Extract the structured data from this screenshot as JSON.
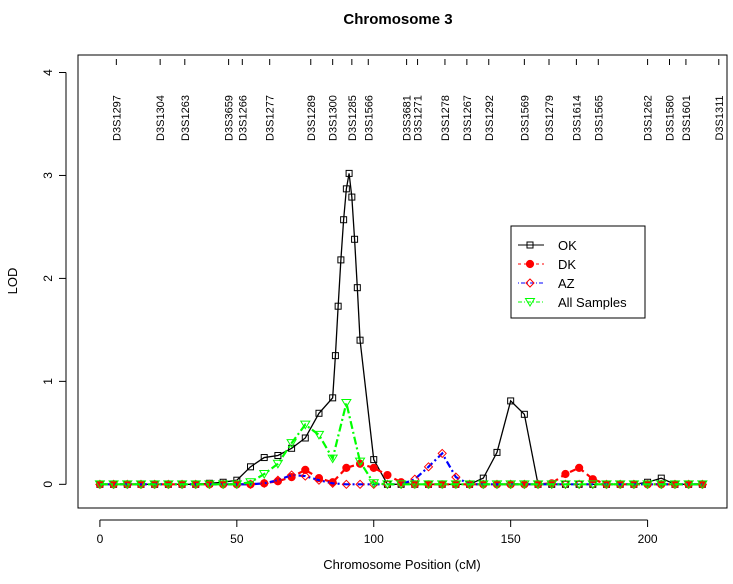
{
  "chart_data": {
    "type": "line",
    "title": "Chromosome 3",
    "xlabel": "Chromosome Position (cM)",
    "ylabel": "LOD",
    "xlim": [
      -8,
      229
    ],
    "ylim": [
      -0.23,
      4.17
    ],
    "xticks": [
      0,
      50,
      100,
      150,
      200
    ],
    "yticks": [
      0,
      1,
      2,
      3,
      4
    ],
    "grid": false,
    "legend_position": "right",
    "markers": [
      {
        "name": "D3S1297",
        "pos": 6
      },
      {
        "name": "D3S1304",
        "pos": 22
      },
      {
        "name": "D3S1263",
        "pos": 31
      },
      {
        "name": "D3S3659",
        "pos": 47
      },
      {
        "name": "D3S1266",
        "pos": 52
      },
      {
        "name": "D3S1277",
        "pos": 62
      },
      {
        "name": "D3S1289",
        "pos": 77
      },
      {
        "name": "D3S1300",
        "pos": 85
      },
      {
        "name": "D3S1285",
        "pos": 92
      },
      {
        "name": "D3S1566",
        "pos": 98
      },
      {
        "name": "D3S3681",
        "pos": 112
      },
      {
        "name": "D3S1271",
        "pos": 116
      },
      {
        "name": "D3S1278",
        "pos": 126
      },
      {
        "name": "D3S1267",
        "pos": 134
      },
      {
        "name": "D3S1292",
        "pos": 142
      },
      {
        "name": "D3S1569",
        "pos": 155
      },
      {
        "name": "D3S1279",
        "pos": 164
      },
      {
        "name": "D3S1614",
        "pos": 174
      },
      {
        "name": "D3S1565",
        "pos": 182
      },
      {
        "name": "D3S1262",
        "pos": 200
      },
      {
        "name": "D3S1580",
        "pos": 208
      },
      {
        "name": "D3S1601",
        "pos": 214
      },
      {
        "name": "D3S1311",
        "pos": 226
      }
    ],
    "series": [
      {
        "name": "OK",
        "color": "#000000",
        "marker": "square",
        "dash": "",
        "x": [
          0,
          5,
          10,
          15,
          20,
          25,
          30,
          35,
          40,
          45,
          50,
          55,
          60,
          65,
          70,
          75,
          80,
          85,
          86,
          87,
          88,
          89,
          90,
          91,
          92,
          93,
          94,
          95,
          100,
          105,
          110,
          115,
          120,
          125,
          130,
          135,
          140,
          145,
          150,
          155,
          160,
          165,
          170,
          175,
          180,
          185,
          190,
          195,
          200,
          205,
          210,
          215,
          220
        ],
        "y": [
          0,
          0,
          0,
          0,
          0,
          0,
          0,
          0,
          0.01,
          0.02,
          0.04,
          0.17,
          0.26,
          0.28,
          0.35,
          0.45,
          0.69,
          0.84,
          1.25,
          1.73,
          2.18,
          2.57,
          2.87,
          3.02,
          2.79,
          2.38,
          1.91,
          1.4,
          0.24,
          0,
          0,
          0,
          0,
          0,
          0,
          0,
          0.06,
          0.31,
          0.81,
          0.68,
          0,
          0,
          0,
          0,
          0,
          0,
          0,
          0,
          0.02,
          0.06,
          0,
          0,
          0
        ]
      },
      {
        "name": "DK",
        "color": "#ff0000",
        "marker": "circle",
        "dash": "6,4",
        "x": [
          0,
          5,
          10,
          15,
          20,
          25,
          30,
          35,
          40,
          45,
          50,
          55,
          60,
          65,
          70,
          75,
          80,
          85,
          90,
          95,
          100,
          105,
          110,
          115,
          120,
          125,
          130,
          135,
          140,
          145,
          150,
          155,
          160,
          165,
          170,
          175,
          180,
          185,
          190,
          195,
          200,
          205,
          210,
          215,
          220
        ],
        "y": [
          0,
          0,
          0,
          0,
          0,
          0,
          0,
          0,
          0,
          0,
          0,
          0,
          0.01,
          0.03,
          0.07,
          0.14,
          0.06,
          0.02,
          0.16,
          0.2,
          0.16,
          0.09,
          0.02,
          0,
          0,
          0,
          0,
          0,
          0,
          0,
          0,
          0,
          0,
          0.01,
          0.1,
          0.16,
          0.05,
          0,
          0,
          0,
          0,
          0,
          0,
          0,
          0
        ]
      },
      {
        "name": "AZ",
        "color": "#0000ff",
        "marker": "diamond",
        "dash": "2,3,7,3",
        "x": [
          0,
          5,
          10,
          15,
          20,
          25,
          30,
          35,
          40,
          45,
          50,
          55,
          60,
          65,
          70,
          75,
          80,
          85,
          90,
          95,
          100,
          105,
          110,
          115,
          120,
          125,
          130,
          135,
          140,
          145,
          150,
          155,
          160,
          165,
          170,
          175,
          180,
          185,
          190,
          195,
          200,
          205,
          210,
          215,
          220
        ],
        "y": [
          0,
          0,
          0,
          0,
          0,
          0,
          0,
          0,
          0,
          0,
          0,
          0,
          0.01,
          0.04,
          0.09,
          0.08,
          0.04,
          0.01,
          0,
          0,
          0,
          0,
          0,
          0.05,
          0.17,
          0.3,
          0.07,
          0,
          0,
          0,
          0,
          0,
          0,
          0,
          0,
          0,
          0,
          0,
          0,
          0,
          0,
          0,
          0,
          0,
          0
        ]
      },
      {
        "name": "All Samples",
        "color": "#00ff00",
        "marker": "triangle-down",
        "dash": "8,3,2,3",
        "x": [
          0,
          5,
          10,
          15,
          20,
          25,
          30,
          35,
          40,
          45,
          50,
          55,
          60,
          65,
          70,
          75,
          80,
          85,
          90,
          95,
          100,
          105,
          110,
          115,
          120,
          125,
          130,
          135,
          140,
          145,
          150,
          155,
          160,
          165,
          170,
          175,
          180,
          185,
          190,
          195,
          200,
          205,
          210,
          215,
          220
        ],
        "y": [
          0,
          0,
          0,
          0,
          0,
          0,
          0,
          0,
          0,
          0,
          0,
          0.02,
          0.1,
          0.2,
          0.4,
          0.58,
          0.48,
          0.25,
          0.79,
          0.22,
          0.01,
          0,
          0,
          0,
          0,
          0,
          0,
          0,
          0,
          0,
          0,
          0,
          0,
          0,
          0,
          0,
          0,
          0,
          0,
          0,
          0,
          0,
          0,
          0,
          0
        ]
      }
    ]
  }
}
